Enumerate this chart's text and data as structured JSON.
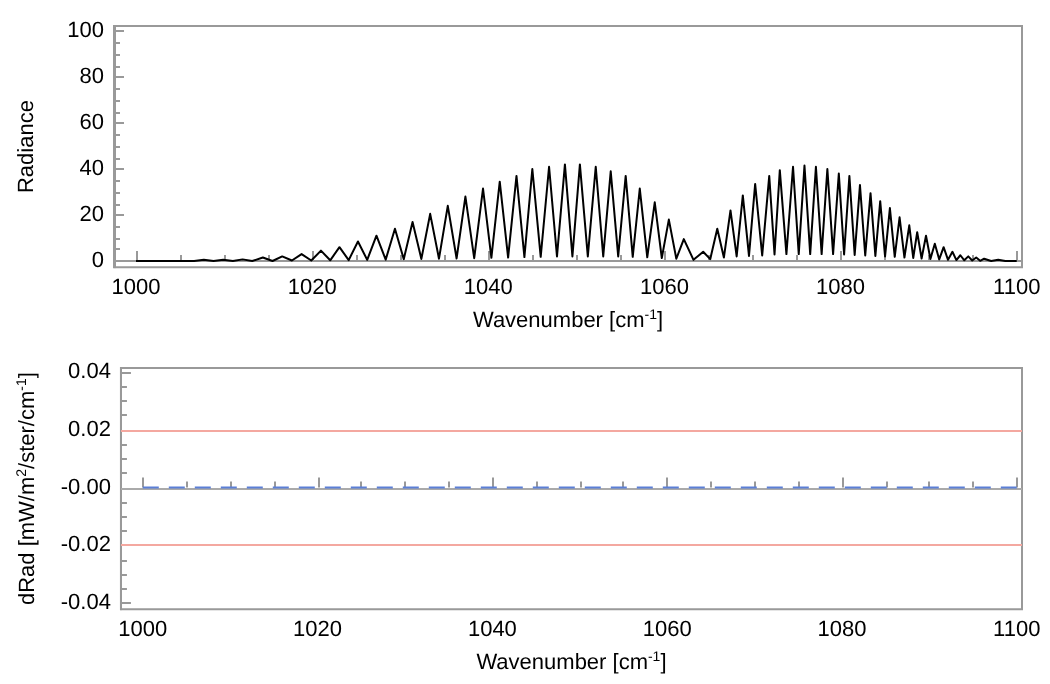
{
  "chart_data": [
    {
      "type": "line",
      "xlabel": "Wavenumber [cm$^{-1}$]",
      "ylabel": "Radiance",
      "marker": "none",
      "xlim": [
        997.5,
        1100.6
      ],
      "xticks": [
        1000,
        1020,
        1040,
        1060,
        1080,
        1100
      ],
      "ylim": [
        -2.7,
        102.2
      ],
      "yticks": [
        0,
        20,
        40,
        60,
        80,
        100
      ],
      "series": [
        {
          "color": "#000000",
          "x": [
            1000,
            1006.6,
            1007.7,
            1008.8,
            1009.9,
            1011,
            1012.1,
            1013.2,
            1014.4,
            1015.5,
            1016.6,
            1017.7,
            1018.8,
            1019.9,
            1021.0,
            1022.05,
            1023.1,
            1024.15,
            1025.2,
            1026.25,
            1027.3,
            1028.35,
            1029.4,
            1030.4,
            1031.4,
            1032.4,
            1033.4,
            1034.4,
            1035.4,
            1036.4,
            1037.4,
            1038.4,
            1039.4,
            1040.35,
            1041.3,
            1042.25,
            1043.2,
            1044.1,
            1045.0,
            1045.95,
            1046.9,
            1047.8,
            1048.7,
            1049.55,
            1050.4,
            1051.3,
            1052.2,
            1053.05,
            1053.9,
            1054.75,
            1055.6,
            1056.4,
            1057.2,
            1058.05,
            1058.9,
            1059.7,
            1060.5,
            1061.35,
            1062.2,
            1063.3,
            1064.4,
            1065.2,
            1066.0,
            1066.75,
            1067.5,
            1068.2,
            1068.9,
            1069.6,
            1070.3,
            1071.1,
            1071.9,
            1072.5,
            1073.1,
            1073.85,
            1074.6,
            1075.25,
            1075.9,
            1076.55,
            1077.2,
            1077.85,
            1078.5,
            1079.15,
            1079.8,
            1080.4,
            1081.0,
            1081.6,
            1082.2,
            1082.8,
            1083.4,
            1083.95,
            1084.5,
            1085.05,
            1085.6,
            1086.15,
            1086.7,
            1087.25,
            1087.8,
            1088.25,
            1088.7,
            1089.2,
            1089.7,
            1090.2,
            1090.7,
            1091.2,
            1091.7,
            1092.2,
            1092.7,
            1093.15,
            1093.6,
            1094.05,
            1094.5,
            1094.95,
            1095.4,
            1095.85,
            1096.3,
            1097.1,
            1097.9,
            1098.7,
            1100
          ],
          "values": [
            0,
            0,
            0.5,
            0,
            0.5,
            0,
            0.7,
            0,
            1.5,
            0,
            2,
            0.2,
            3,
            0.2,
            4.5,
            0.3,
            6,
            0.4,
            8.5,
            0.5,
            11,
            0.6,
            14,
            0.8,
            17,
            0.9,
            20.5,
            1,
            24,
            1.1,
            28,
            1.2,
            31.5,
            1.4,
            34.5,
            1.5,
            37,
            1.7,
            40,
            1.8,
            41,
            2,
            42,
            2,
            42,
            2,
            41,
            2,
            39,
            2,
            37,
            1.8,
            31.5,
            1.6,
            25.5,
            1.3,
            18,
            1,
            9.5,
            0.5,
            4,
            0.8,
            14,
            1.5,
            22,
            2,
            28.5,
            2.2,
            33.5,
            2.4,
            37,
            2.8,
            39.5,
            3,
            41,
            3,
            41.5,
            3,
            41,
            3,
            40,
            3,
            38,
            2.8,
            37,
            2.6,
            33,
            2.4,
            29.5,
            2.2,
            26,
            2,
            23,
            1.8,
            19,
            1.5,
            15.5,
            1.3,
            12.5,
            1.1,
            11,
            0.9,
            7.5,
            0.7,
            6,
            0.5,
            4,
            0.4,
            2.5,
            0.3,
            2,
            0.2,
            1.5,
            0.1,
            1,
            0,
            0.5,
            0,
            0
          ]
        }
      ]
    },
    {
      "type": "line",
      "xlabel": "Wavenumber [cm$^{-1}$]",
      "ylabel": "dRad [mW/m$^{2}$/ster/cm$^{-1}$]",
      "marker": "none",
      "xlim": [
        997.5,
        1100.6
      ],
      "xticks": [
        1000,
        1020,
        1040,
        1060,
        1080,
        1100
      ],
      "ylim": [
        -0.042,
        0.0413
      ],
      "yticks": [
        -0.04,
        -0.02,
        {
          "value": 0,
          "label": "-0.00"
        },
        0.02,
        0.04
      ],
      "ref_lines": [
        {
          "axis": "y",
          "value": 0.02,
          "color": "#f4a8a0"
        },
        {
          "axis": "y",
          "value": -0.02,
          "color": "#f4a8a0"
        },
        {
          "axis": "y",
          "value": 0,
          "color": "#aaaaaa"
        }
      ],
      "series": [
        {
          "color": "#5b7fd6",
          "line_style": "dashed",
          "x": [
            1000,
            1100
          ],
          "values": [
            0,
            0
          ]
        }
      ]
    }
  ]
}
